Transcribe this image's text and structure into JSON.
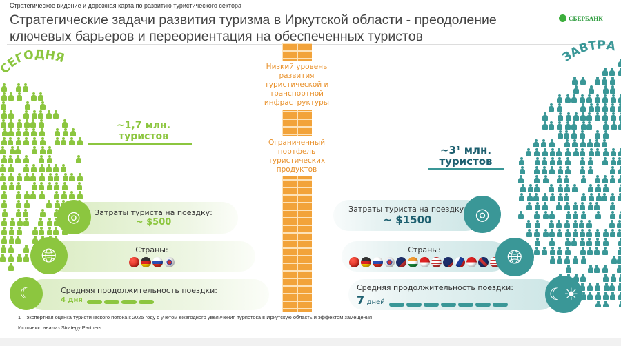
{
  "header": {
    "subtitle": "Стратегическое видение и дорожная карта по развитию туристического сектора",
    "title": "Стратегические задачи развития туризма в Иркутской области - преодоление  ключевых барьеров и переориентация на обеспеченных туристов",
    "logo": "СБЕРБАНК"
  },
  "colors": {
    "green": "#8cc63f",
    "teal": "#3a9797",
    "orange": "#f2a33a"
  },
  "barriers": [
    "Низкий уровень развития туристической и транспортной инфраструктуры",
    "Ограниченный портфель туристических продуктов"
  ],
  "today": {
    "label": "СЕГОДНЯ",
    "tourists_value": "~1,7 млн.",
    "tourists_label": "туристов",
    "cost_label": "Затраты туриста на поездку:",
    "cost_value": "~ $500",
    "countries_label": "Страны:",
    "flags": [
      "china",
      "germany",
      "russia",
      "korea"
    ],
    "duration_label": "Средняя продолжительность поездки:",
    "duration_value": "4 дня",
    "days": 4,
    "icons": [
      "coins-icon",
      "globe-icon",
      "day-night-icon"
    ]
  },
  "tomorrow": {
    "label": "ЗАВТРА",
    "tourists_value": "~3¹ млн.",
    "tourists_label": "туристов",
    "cost_label": "Затраты туриста на поездку:",
    "cost_value": "~ $1500",
    "countries_label": "Страны:",
    "flags": [
      "china",
      "germany",
      "russia",
      "korea",
      "new-zealand",
      "india",
      "indonesia",
      "malaysia",
      "australia",
      "philippines",
      "singapore",
      "uk",
      "usa"
    ],
    "duration_label": "Средняя продолжительность поездки:",
    "duration_num": "7",
    "duration_unit": "дней",
    "days": 7
  },
  "footnote": "1 – экспертная оценка туристического потока к 2025 году с учетом ежегодного увеличения турпотока в Иркутскую область и эффектом замещения",
  "source": "Источник: анализ Strategy Partners"
}
